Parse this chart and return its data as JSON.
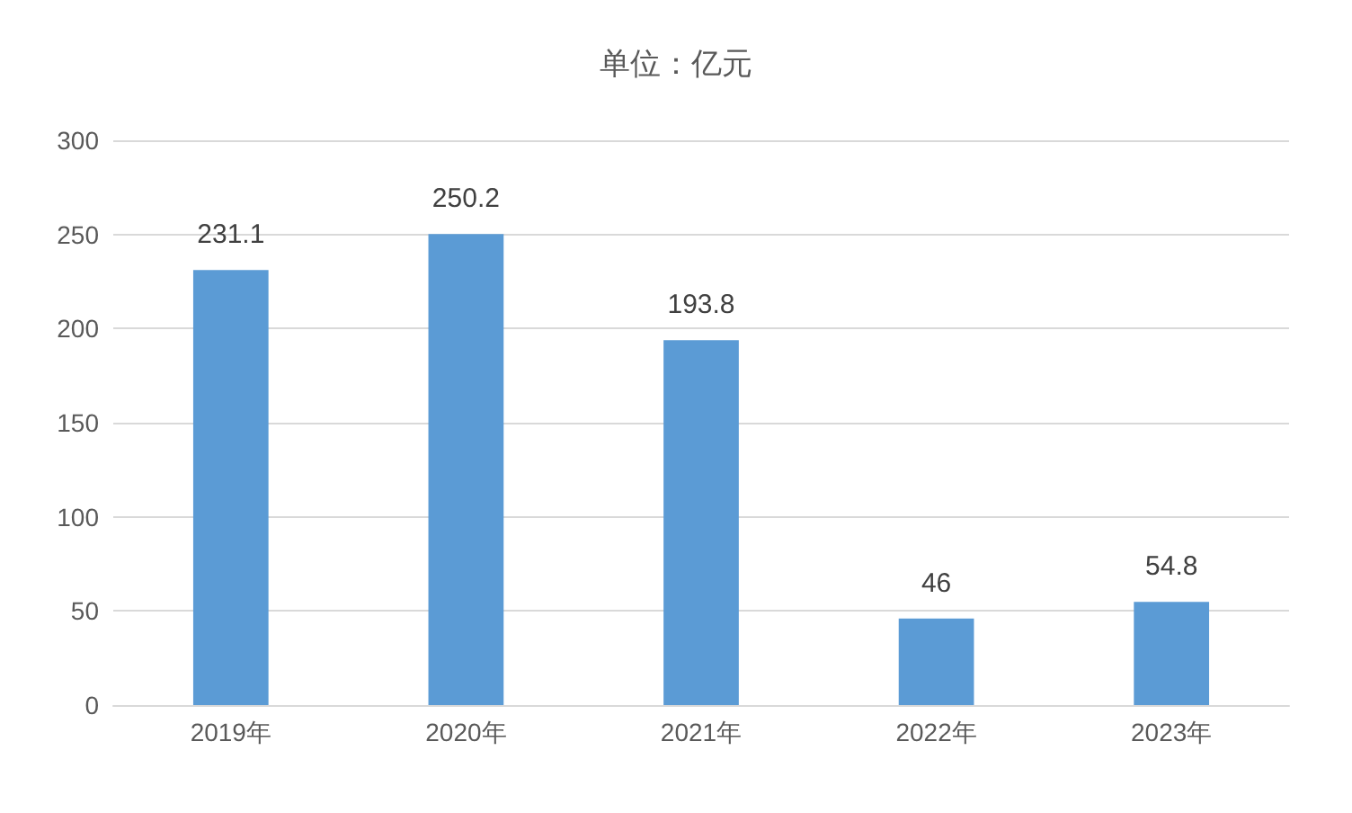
{
  "chart_data": {
    "type": "bar",
    "title": "单位：亿元",
    "categories": [
      "2019年",
      "2020年",
      "2021年",
      "2022年",
      "2023年"
    ],
    "values": [
      231.1,
      250.2,
      193.8,
      46,
      54.8
    ],
    "color": "#5b9bd5",
    "ylim": [
      0,
      300
    ],
    "yticks": [
      0,
      50,
      100,
      150,
      200,
      250,
      300
    ],
    "grid": "y",
    "data_labels": true
  }
}
